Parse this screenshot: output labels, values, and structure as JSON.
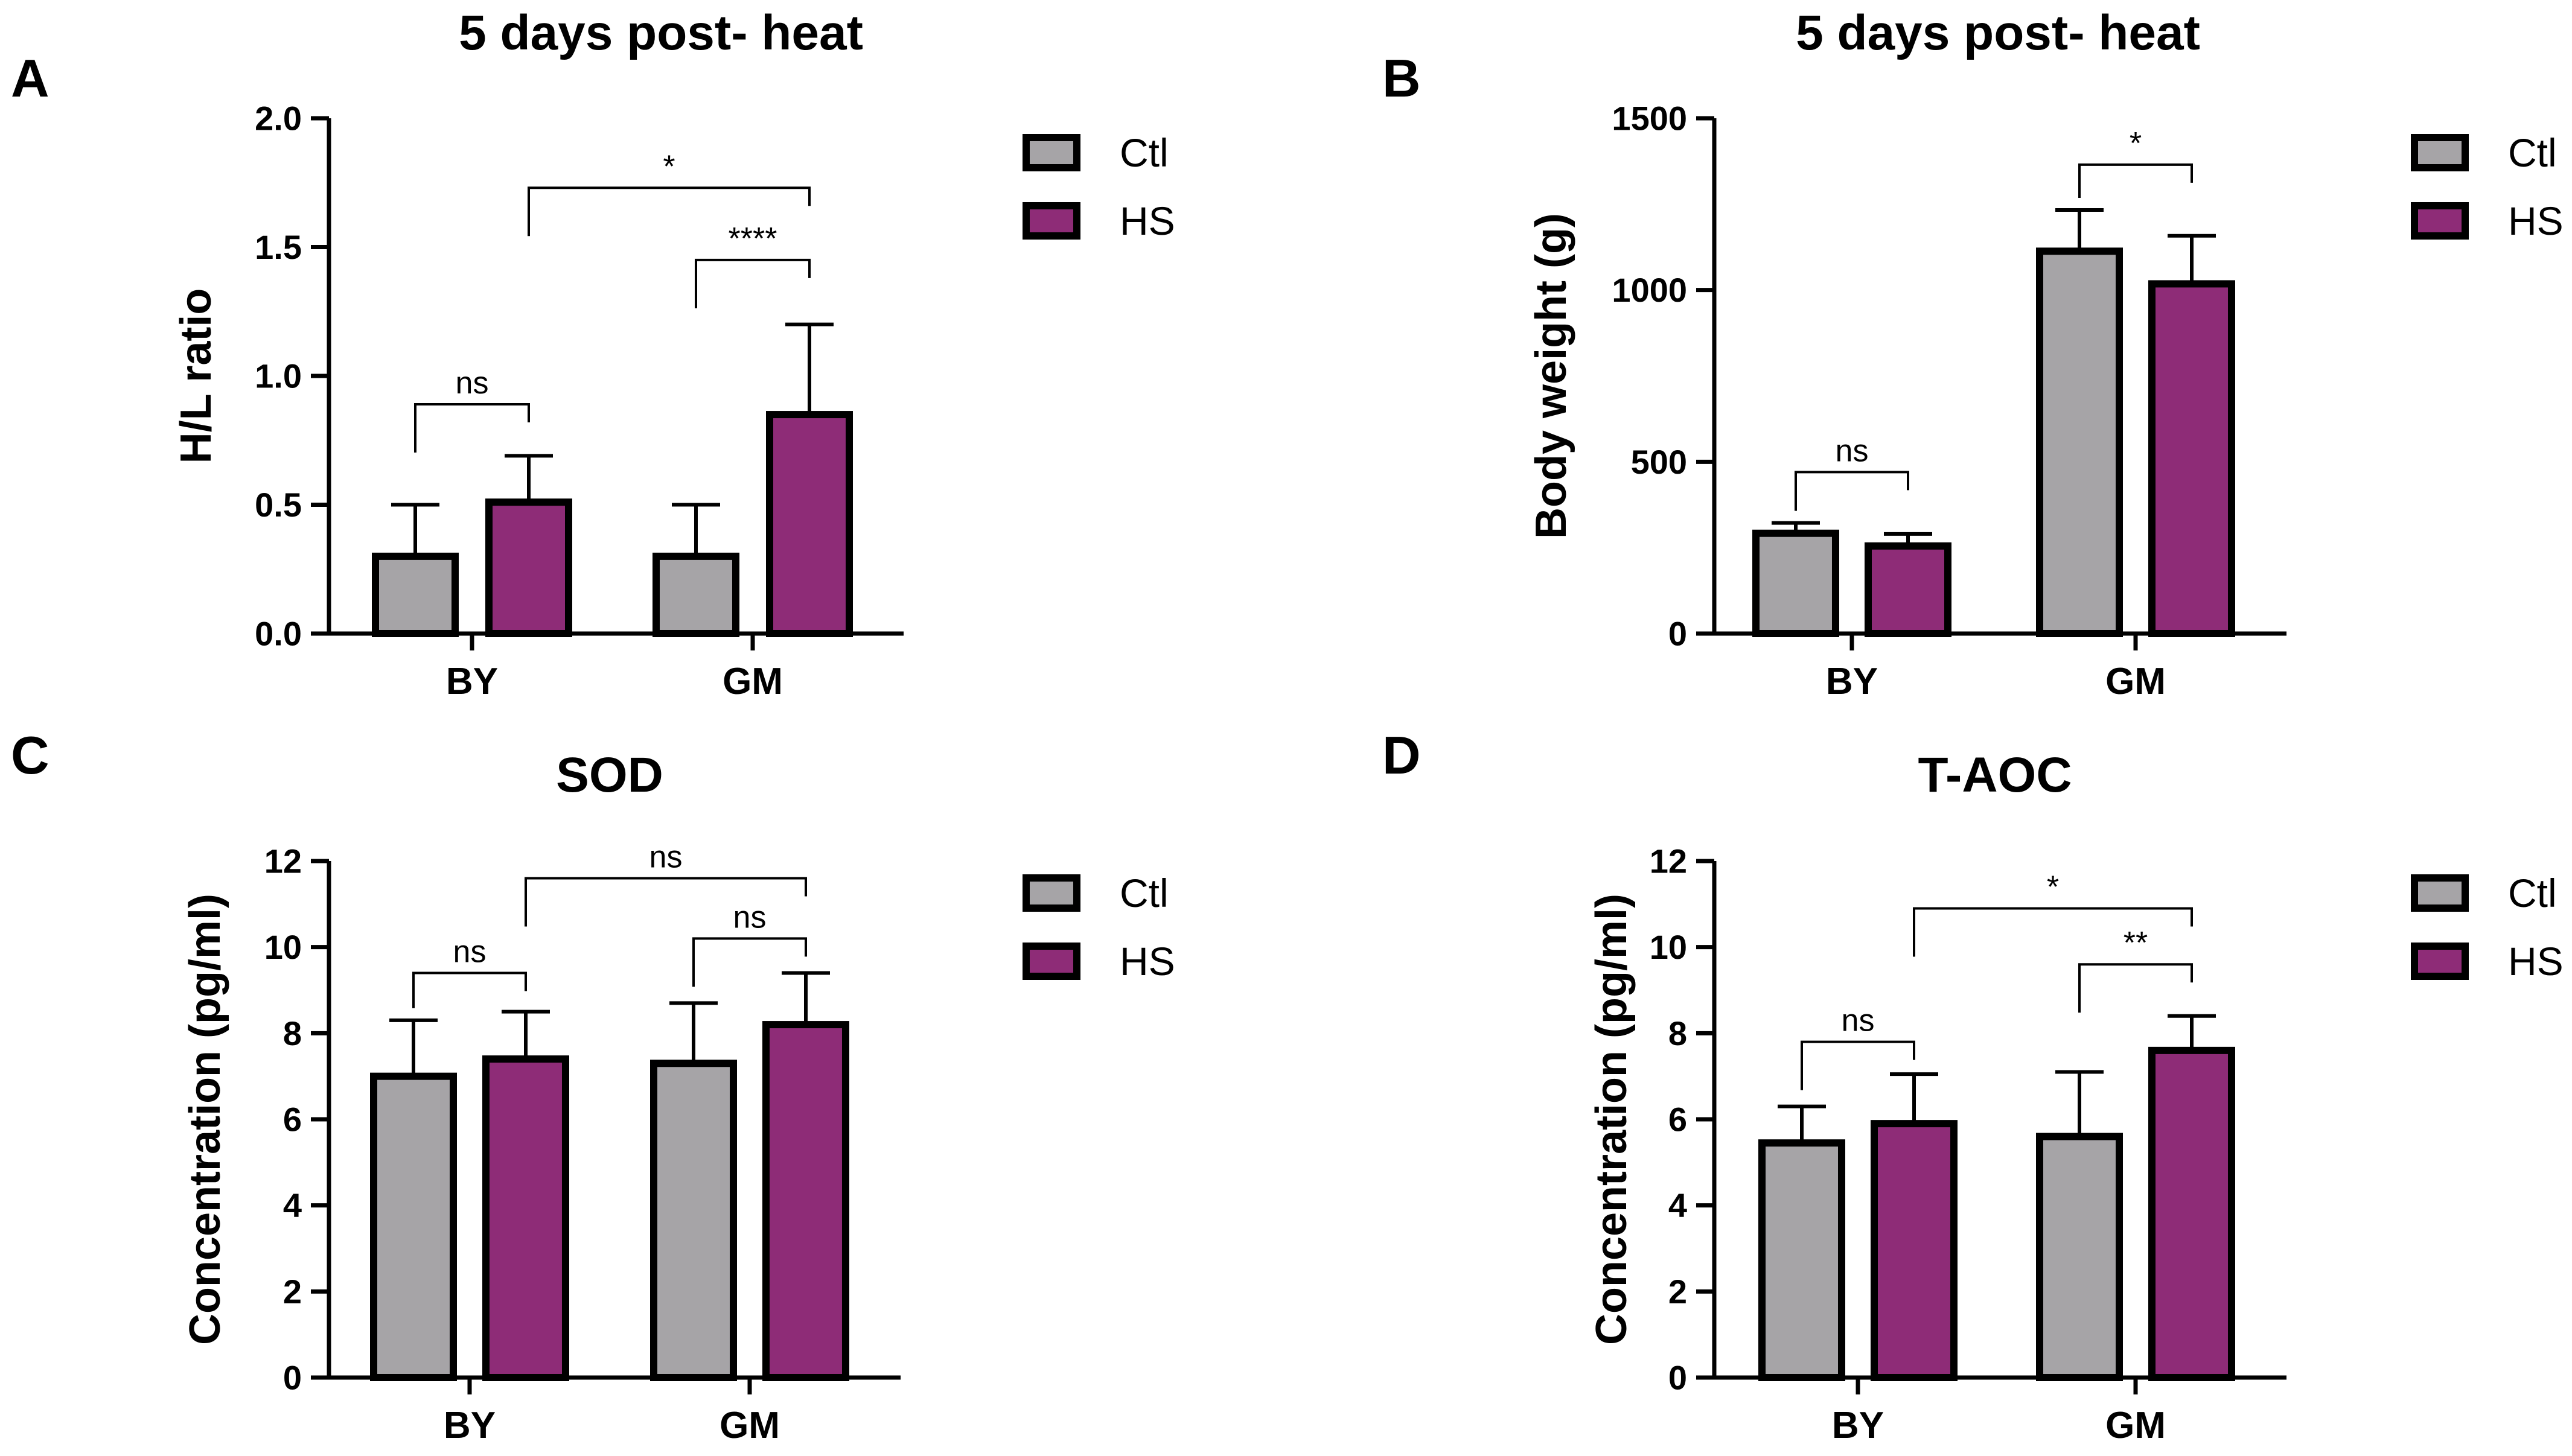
{
  "figure": {
    "legend": [
      {
        "name": "Ctl",
        "color": "#a6a4a7"
      },
      {
        "name": "HS",
        "color": "#8e2c77"
      }
    ]
  },
  "chart_data": [
    {
      "type": "bar",
      "panel": "A",
      "title": "5 days post- heat",
      "xlabel": "",
      "ylabel": "H/L ratio",
      "ylim": [
        0,
        2.0
      ],
      "yticks": [
        "0.0",
        "0.5",
        "1.0",
        "1.5",
        "2.0"
      ],
      "yticks_values": [
        0,
        0.5,
        1.0,
        1.5,
        2.0
      ],
      "categories": [
        "BY",
        "GM"
      ],
      "series": [
        {
          "name": "Ctl",
          "values": [
            0.3,
            0.3
          ],
          "errors": [
            0.2,
            0.2
          ]
        },
        {
          "name": "HS",
          "values": [
            0.51,
            0.85
          ],
          "errors": [
            0.18,
            0.35
          ]
        }
      ],
      "annotations": [
        {
          "label": "ns",
          "from": [
            0,
            0
          ],
          "to": [
            0,
            1
          ],
          "y": 0.89
        },
        {
          "label": "****",
          "from": [
            1,
            0
          ],
          "to": [
            1,
            1
          ],
          "y": 1.45
        },
        {
          "label": "*",
          "from": [
            0,
            1
          ],
          "to": [
            1,
            1
          ],
          "y": 1.73
        }
      ]
    },
    {
      "type": "bar",
      "panel": "B",
      "title": "5 days post- heat",
      "xlabel": "",
      "ylabel": "Body weight (g)",
      "ylim": [
        0,
        1500
      ],
      "yticks": [
        "0",
        "500",
        "1000",
        "1500"
      ],
      "yticks_values": [
        0,
        500,
        1000,
        1500
      ],
      "categories": [
        "BY",
        "GM"
      ],
      "series": [
        {
          "name": "Ctl",
          "values": [
            292,
            1113
          ],
          "errors": [
            30,
            120
          ]
        },
        {
          "name": "HS",
          "values": [
            255,
            1018
          ],
          "errors": [
            35,
            140
          ]
        }
      ],
      "annotations": [
        {
          "label": "ns",
          "from": [
            0,
            0
          ],
          "to": [
            0,
            1
          ],
          "y": 470
        },
        {
          "label": "*",
          "from": [
            1,
            0
          ],
          "to": [
            1,
            1
          ],
          "y": 1365
        }
      ]
    },
    {
      "type": "bar",
      "panel": "C",
      "title": "SOD",
      "xlabel": "",
      "ylabel": "Concentration (pg/ml)",
      "ylim": [
        0,
        12
      ],
      "yticks": [
        "0",
        "2",
        "4",
        "6",
        "8",
        "10",
        "12"
      ],
      "yticks_values": [
        0,
        2,
        4,
        6,
        8,
        10,
        12
      ],
      "categories": [
        "BY",
        "GM"
      ],
      "series": [
        {
          "name": "Ctl",
          "values": [
            7.0,
            7.3
          ],
          "errors": [
            1.3,
            1.4
          ]
        },
        {
          "name": "HS",
          "values": [
            7.4,
            8.2
          ],
          "errors": [
            1.1,
            1.2
          ]
        }
      ],
      "annotations": [
        {
          "label": "ns",
          "from": [
            0,
            0
          ],
          "to": [
            0,
            1
          ],
          "y": 9.4
        },
        {
          "label": "ns",
          "from": [
            1,
            0
          ],
          "to": [
            1,
            1
          ],
          "y": 10.2
        },
        {
          "label": "ns",
          "from": [
            0,
            1
          ],
          "to": [
            1,
            1
          ],
          "y": 11.6
        }
      ]
    },
    {
      "type": "bar",
      "panel": "D",
      "title": "T-AOC",
      "xlabel": "",
      "ylabel": "Concentration (pg/ml)",
      "ylim": [
        0,
        12
      ],
      "yticks": [
        "0",
        "2",
        "4",
        "6",
        "8",
        "10",
        "12"
      ],
      "yticks_values": [
        0,
        2,
        4,
        6,
        8,
        10,
        12
      ],
      "categories": [
        "BY",
        "GM"
      ],
      "series": [
        {
          "name": "Ctl",
          "values": [
            5.45,
            5.6
          ],
          "errors": [
            0.85,
            1.5
          ]
        },
        {
          "name": "HS",
          "values": [
            5.9,
            7.6
          ],
          "errors": [
            1.15,
            0.8
          ]
        }
      ],
      "annotations": [
        {
          "label": "ns",
          "from": [
            0,
            0
          ],
          "to": [
            0,
            1
          ],
          "y": 7.8
        },
        {
          "label": "**",
          "from": [
            1,
            0
          ],
          "to": [
            1,
            1
          ],
          "y": 9.6
        },
        {
          "label": "*",
          "from": [
            0,
            1
          ],
          "to": [
            1,
            1
          ],
          "y": 10.9
        }
      ]
    }
  ]
}
